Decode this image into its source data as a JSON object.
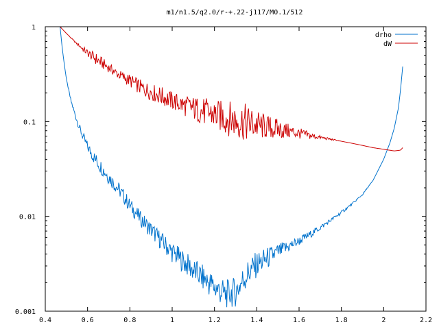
{
  "chart_data": {
    "type": "line",
    "title": "m1/n1.5/q2.0/r-+.22-j117/M0.1/512",
    "xlabel": "",
    "ylabel": "",
    "xlim": [
      0.4,
      2.2
    ],
    "ylim": [
      0.001,
      1
    ],
    "y_scale": "log",
    "grid": false,
    "legend_position": "top-right",
    "x_ticks": [
      {
        "value": 0.4,
        "label": "0.4"
      },
      {
        "value": 0.6,
        "label": "0.6"
      },
      {
        "value": 0.8,
        "label": "0.8"
      },
      {
        "value": 1.0,
        "label": "1"
      },
      {
        "value": 1.2,
        "label": "1.2"
      },
      {
        "value": 1.4,
        "label": "1.4"
      },
      {
        "value": 1.6,
        "label": "1.6"
      },
      {
        "value": 1.8,
        "label": "1.8"
      },
      {
        "value": 2.0,
        "label": "2"
      },
      {
        "value": 2.2,
        "label": "2.2"
      }
    ],
    "y_ticks": [
      {
        "value": 1,
        "label": "1"
      },
      {
        "value": 0.1,
        "label": "0.1"
      },
      {
        "value": 0.01,
        "label": "0.01"
      },
      {
        "value": 0.001,
        "label": "0.001"
      }
    ],
    "series": [
      {
        "name": "drho",
        "color": "#0072cc",
        "x": [
          0.47,
          0.48,
          0.49,
          0.5,
          0.52,
          0.54,
          0.56,
          0.58,
          0.6,
          0.63,
          0.66,
          0.7,
          0.75,
          0.8,
          0.85,
          0.9,
          0.95,
          1.0,
          1.05,
          1.1,
          1.15,
          1.2,
          1.25,
          1.3,
          1.35,
          1.4,
          1.45,
          1.5,
          1.55,
          1.6,
          1.65,
          1.7,
          1.75,
          1.8,
          1.85,
          1.9,
          1.95,
          2.0,
          2.03,
          2.05,
          2.07,
          2.08,
          2.09
        ],
        "y": [
          1.0,
          0.6,
          0.4,
          0.28,
          0.17,
          0.12,
          0.088,
          0.068,
          0.054,
          0.042,
          0.034,
          0.026,
          0.019,
          0.013,
          0.0095,
          0.0072,
          0.0055,
          0.0042,
          0.0034,
          0.0027,
          0.0022,
          0.0018,
          0.0015,
          0.0016,
          0.0024,
          0.0031,
          0.0036,
          0.0042,
          0.0048,
          0.0055,
          0.0064,
          0.0076,
          0.0091,
          0.011,
          0.0135,
          0.017,
          0.024,
          0.04,
          0.06,
          0.085,
          0.14,
          0.22,
          0.38
        ],
        "noise": [
          0,
          0,
          0,
          0,
          0.02,
          0.03,
          0.04,
          0.05,
          0.06,
          0.07,
          0.08,
          0.08,
          0.08,
          0.08,
          0.08,
          0.09,
          0.1,
          0.11,
          0.12,
          0.13,
          0.14,
          0.15,
          0.15,
          0.16,
          0.16,
          0.14,
          0.12,
          0.09,
          0.07,
          0.05,
          0.04,
          0.03,
          0.02,
          0.02,
          0.01,
          0.01,
          0,
          0,
          0,
          0,
          0,
          0,
          0
        ]
      },
      {
        "name": "dW",
        "color": "#cc0000",
        "x": [
          0.47,
          0.5,
          0.55,
          0.6,
          0.65,
          0.7,
          0.75,
          0.8,
          0.85,
          0.9,
          0.95,
          1.0,
          1.05,
          1.1,
          1.15,
          1.2,
          1.25,
          1.3,
          1.35,
          1.4,
          1.45,
          1.5,
          1.55,
          1.6,
          1.65,
          1.7,
          1.75,
          1.8,
          1.85,
          1.9,
          1.95,
          2.0,
          2.05,
          2.08,
          2.09
        ],
        "y": [
          1.0,
          0.85,
          0.66,
          0.53,
          0.44,
          0.37,
          0.31,
          0.27,
          0.23,
          0.205,
          0.185,
          0.165,
          0.15,
          0.138,
          0.127,
          0.118,
          0.11,
          0.103,
          0.097,
          0.092,
          0.087,
          0.083,
          0.079,
          0.075,
          0.071,
          0.068,
          0.065,
          0.062,
          0.059,
          0.056,
          0.053,
          0.051,
          0.049,
          0.05,
          0.053
        ],
        "noise": [
          0,
          0,
          0.01,
          0.04,
          0.07,
          0.05,
          0.05,
          0.07,
          0.08,
          0.09,
          0.1,
          0.1,
          0.11,
          0.13,
          0.15,
          0.16,
          0.18,
          0.2,
          0.2,
          0.16,
          0.13,
          0.11,
          0.08,
          0.06,
          0.04,
          0.02,
          0.01,
          0,
          0,
          0,
          0,
          0,
          0,
          0,
          0
        ]
      }
    ]
  }
}
